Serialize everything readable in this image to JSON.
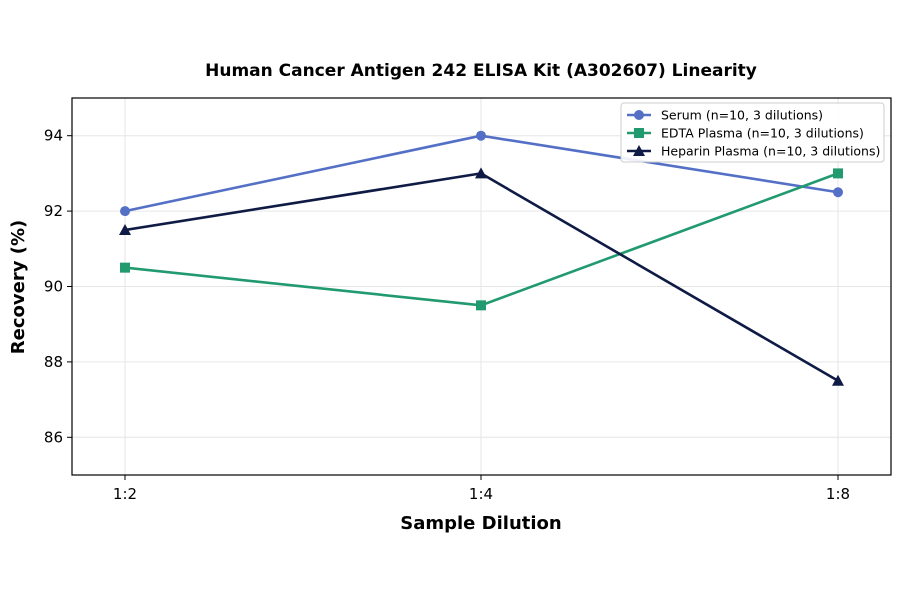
{
  "chart_data": {
    "type": "line",
    "title": "Human Cancer Antigen 242 ELISA Kit (A302607) Linearity",
    "xlabel": "Sample Dilution",
    "ylabel": "Recovery (%)",
    "categories": [
      "1:2",
      "1:4",
      "1:8"
    ],
    "ylim": [
      85,
      95
    ],
    "yticks": [
      86,
      88,
      90,
      92,
      94
    ],
    "grid": true,
    "legend_position": "top-right",
    "series": [
      {
        "name": "Serum (n=10, 3 dilutions)",
        "values": [
          92.0,
          94.0,
          92.5
        ],
        "color": "#5470c6",
        "marker": "circle"
      },
      {
        "name": "EDTA Plasma (n=10, 3 dilutions)",
        "values": [
          90.5,
          89.5,
          93.0
        ],
        "color": "#229a6f",
        "marker": "square"
      },
      {
        "name": "Heparin Plasma (n=10, 3 dilutions)",
        "values": [
          91.5,
          93.0,
          87.5
        ],
        "color": "#0f1b45",
        "marker": "triangle"
      }
    ]
  }
}
